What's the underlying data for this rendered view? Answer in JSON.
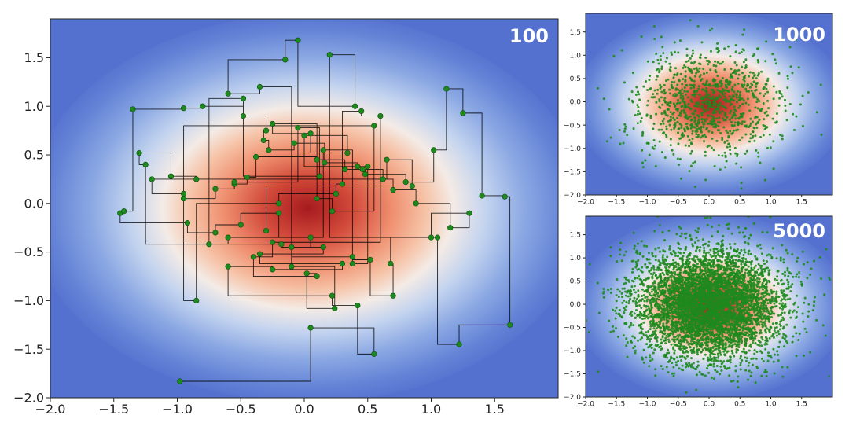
{
  "chart_data": [
    {
      "id": "main",
      "type": "scatter",
      "subtype": "gibbs-sampling-trace",
      "title": "",
      "label": "100",
      "n_samples": 100,
      "xlabel": "",
      "ylabel": "",
      "xlim": [
        -2.0,
        2.0
      ],
      "ylim": [
        -2.0,
        1.9
      ],
      "xticks": [
        -2.0,
        -1.5,
        -1.0,
        -0.5,
        0.0,
        0.5,
        1.0,
        1.5
      ],
      "yticks": [
        -2.0,
        -1.5,
        -1.0,
        -0.5,
        0.0,
        0.5,
        1.0,
        1.5
      ],
      "background": "2D Gaussian density heatmap (coolwarm)",
      "point_color": "#1e8a1e",
      "path_color": "#000000",
      "x": [
        -0.98,
        0.05,
        0.55,
        0.42,
        0.22,
        -0.6,
        -0.25,
        0.3,
        -0.35,
        0.15,
        -0.18,
        -1.25,
        -1.3,
        -1.05,
        -0.85,
        -0.55,
        -0.45,
        -0.38,
        0.1,
        0.32,
        0.48,
        0.8,
        1.02,
        1.12,
        1.25,
        1.4,
        1.58,
        1.62,
        1.22,
        1.05,
        0.68,
        0.7,
        0.52,
        0.38,
        -0.1,
        0.05,
        -0.2,
        -0.5,
        -0.7,
        -0.92,
        -1.45,
        -1.42,
        -1.35,
        -0.95,
        -0.8,
        -0.48,
        -0.3,
        -0.32,
        -0.28,
        -0.08,
        0.16,
        0.42,
        0.46,
        0.62,
        0.7,
        0.88,
        1.15,
        1.3,
        1.0,
        0.2,
        0.4,
        -0.05,
        -0.15,
        -0.6,
        -0.35,
        -0.1,
        0.24,
        0.02,
        0.1,
        -0.4,
        -0.25,
        0.6,
        0.45,
        0.3,
        0.25,
        -0.2,
        -0.85,
        -0.95,
        -0.7,
        -0.55,
        -0.05,
        0.12,
        -0.48,
        -0.75,
        -0.6,
        0.15,
        0.38,
        0.5,
        0.0,
        0.34,
        0.05,
        -0.25,
        0.1,
        0.22,
        0.55,
        -0.95,
        -1.2,
        0.65,
        0.85,
        -0.3
      ],
      "y": [
        -1.83,
        -1.28,
        -1.55,
        -1.05,
        -0.95,
        -0.65,
        -0.68,
        -0.62,
        -0.52,
        -0.45,
        -0.42,
        0.4,
        0.52,
        0.28,
        0.25,
        0.2,
        0.27,
        0.48,
        0.45,
        0.35,
        0.3,
        0.22,
        0.55,
        1.18,
        0.93,
        0.08,
        0.07,
        -1.25,
        -1.45,
        -0.35,
        -0.62,
        -0.95,
        -0.58,
        -0.55,
        -0.45,
        -0.35,
        -0.1,
        -0.22,
        -0.3,
        -0.2,
        -0.1,
        -0.08,
        0.97,
        0.98,
        1.0,
        0.9,
        0.75,
        0.65,
        0.55,
        0.62,
        0.42,
        0.38,
        0.35,
        0.25,
        0.14,
        0.0,
        -0.25,
        -0.1,
        -0.35,
        1.53,
        1.0,
        1.68,
        1.48,
        1.13,
        1.2,
        -0.65,
        -1.08,
        -0.72,
        -0.75,
        -0.55,
        -0.4,
        0.9,
        0.95,
        0.2,
        0.1,
        0.0,
        -1.0,
        0.05,
        0.15,
        0.22,
        0.78,
        0.28,
        1.08,
        -0.42,
        -0.35,
        0.55,
        -0.62,
        0.38,
        0.7,
        0.52,
        0.72,
        0.82,
        0.05,
        -0.08,
        0.8,
        0.1,
        0.25,
        0.45,
        0.18,
        -0.28
      ],
      "trace_start": [
        -0.98,
        -1.83
      ]
    },
    {
      "id": "top-right",
      "type": "scatter",
      "title": "",
      "label": "1000",
      "n_samples": 1000,
      "xlim": [
        -2.0,
        2.0
      ],
      "ylim": [
        -2.0,
        1.9
      ],
      "xticks": [
        -2.0,
        -1.5,
        -1.0,
        -0.5,
        0.0,
        0.5,
        1.0,
        1.5
      ],
      "yticks": [
        -2.0,
        -1.5,
        -1.0,
        -0.5,
        0.0,
        0.5,
        1.0,
        1.5
      ],
      "distribution": {
        "mean": [
          0.0,
          0.0
        ],
        "std": [
          0.6,
          0.6
        ]
      },
      "point_color": "#1e8a1e"
    },
    {
      "id": "bottom-right",
      "type": "scatter",
      "title": "",
      "label": "5000",
      "n_samples": 5000,
      "xlim": [
        -2.0,
        2.0
      ],
      "ylim": [
        -2.0,
        1.9
      ],
      "xticks": [
        -2.0,
        -1.5,
        -1.0,
        -0.5,
        0.0,
        0.5,
        1.0,
        1.5
      ],
      "yticks": [
        -2.0,
        -1.5,
        -1.0,
        -0.5,
        0.0,
        0.5,
        1.0,
        1.5
      ],
      "distribution": {
        "mean": [
          0.0,
          0.0
        ],
        "std": [
          0.6,
          0.6
        ]
      },
      "point_color": "#1e8a1e"
    }
  ]
}
